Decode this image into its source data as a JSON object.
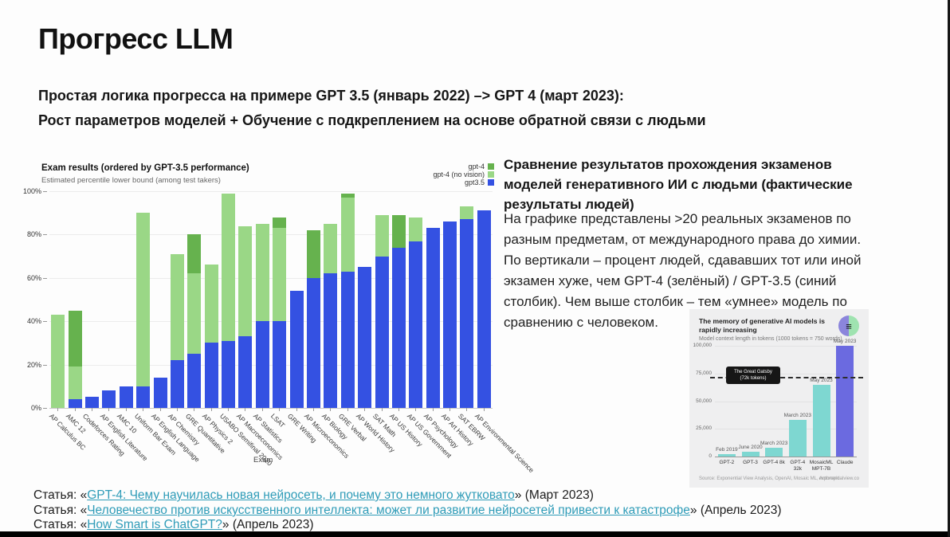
{
  "slide": {
    "title": "Прогресс LLM",
    "intro_line1": "Простая логика прогресса на примере GPT 3.5 (январь 2022) –> GPT 4 (март 2023):",
    "intro_line2": "Рост параметров моделей + Обучение с подкреплением на основе обратной связи с людьми",
    "right_heading": "Сравнение результатов прохождения экзаменов\nмоделей генеративного ИИ с людьми (фактические\nрезультаты людей)",
    "right_para1": "На графике представлены >20 реальных экзаменов по\nразным предметам, от международного права до химии.",
    "right_para2": "По вертикали – процент людей, сдававших тот или иной\nэкзамен хуже, чем GPT-4 (зелёный) / GPT-3.5 (синий\nстолбик). Чем выше столбик – тем «умнее» модель по\nсравнению с человеком."
  },
  "links": [
    {
      "prefix": "Статья: «",
      "text": "GPT-4: Чему научилась новая нейросеть, и почему это немного жутковато",
      "suffix": "» (Март 2023)"
    },
    {
      "prefix": "Статья: «",
      "text": "Человечество против искусственного интеллекта: может ли развитие нейросетей привести к катастрофе",
      "suffix": "» (Апрель 2023)"
    },
    {
      "prefix": "Статья: «",
      "text": "How Smart is ChatGPT?",
      "suffix": "» (Апрель 2023)"
    }
  ],
  "chart_data": [
    {
      "type": "bar",
      "title": "Exam results (ordered by GPT-3.5 performance)",
      "subtitle": "Estimated percentile lower bound (among test takers)",
      "xlabel": "Exam",
      "ylabel": "",
      "ylim": [
        0,
        100
      ],
      "yticks": [
        "0%",
        "20%",
        "40%",
        "60%",
        "80%",
        "100%"
      ],
      "grid": true,
      "legend_position": "top-right",
      "categories": [
        "AP Calculus BC",
        "AMC 12",
        "Codeforces Rating",
        "AP English Literature",
        "AMC 10",
        "Uniform Bar Exam",
        "AP English Language",
        "AP Chemistry",
        "GRE Quantitative",
        "AP Physics 2",
        "USABO Semifinal 2020",
        "AP Macroeconomics",
        "AP Statistics",
        "LSAT",
        "GRE Writing",
        "AP Microeconomics",
        "AP Biology",
        "GRE Verbal",
        "AP World History",
        "SAT Math",
        "AP US History",
        "AP US Government",
        "AP Psychology",
        "AP Art History",
        "SAT EBRW",
        "AP Environmental Science"
      ],
      "series": [
        {
          "name": "gpt-4",
          "color": "#66b24e",
          "values": [
            43,
            45,
            5,
            8,
            6,
            90,
            14,
            71,
            80,
            66,
            99,
            84,
            85,
            88,
            54,
            82,
            85,
            99,
            65,
            89,
            89,
            88,
            83,
            86,
            93,
            91
          ]
        },
        {
          "name": "gpt-4 (no vision)",
          "color": "#9ad786",
          "values": [
            43,
            19,
            5,
            8,
            6,
            90,
            14,
            71,
            62,
            66,
            99,
            84,
            85,
            83,
            54,
            60,
            85,
            97,
            65,
            89,
            74,
            88,
            83,
            86,
            93,
            91
          ]
        },
        {
          "name": "gpt3.5",
          "color": "#3451e2",
          "values": [
            0,
            4,
            5,
            8,
            10,
            10,
            14,
            22,
            25,
            30,
            31,
            33,
            40,
            40,
            54,
            60,
            62,
            63,
            65,
            70,
            74,
            77,
            83,
            86,
            87,
            91
          ]
        }
      ]
    },
    {
      "type": "bar",
      "title": "The memory of generative AI models is rapidly increasing",
      "subtitle": "Model context length in tokens (1000 tokens = 750 words)",
      "ylim": [
        0,
        100000
      ],
      "yticks": [
        "0",
        "25,000",
        "50,000",
        "75,000",
        "100,000"
      ],
      "categories": [
        "GPT-2",
        "GPT-3",
        "GPT-4 8k",
        "GPT-4\n32k",
        "MosaicML\nMPT-7B",
        "Claude"
      ],
      "values": [
        2000,
        4000,
        8000,
        33000,
        65000,
        100000
      ],
      "bar_labels": [
        "Feb 2019",
        "June 2020",
        "March 2023",
        "March 2023",
        "May 2023",
        "May 2023"
      ],
      "bar_color": "#7ed7d1",
      "highlight": {
        "index": 5,
        "color": "#6b6ae0"
      },
      "annotation": {
        "text": "The Great Gatsby\n(72k tokens)",
        "value": 72000
      },
      "source_left": "Source: Exponential View Analysis, OpenAI, Mosaic ML, Anthropic",
      "source_right": "exponentialview.co",
      "logo": "exponential-view-logo"
    }
  ]
}
